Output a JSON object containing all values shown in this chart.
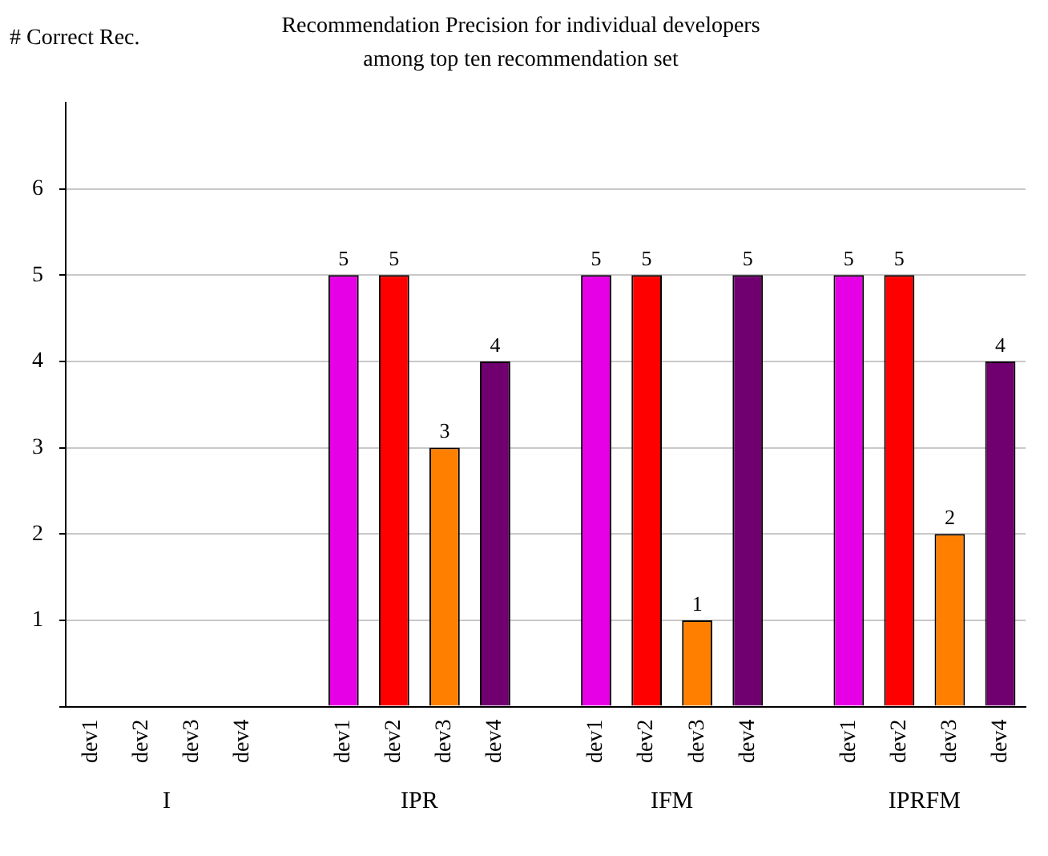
{
  "chart_data": {
    "type": "bar",
    "title": "Recommendation Precision for individual developers\namong top ten recommendation set",
    "ylabel": "# Correct Rec.",
    "categories": [
      "dev1",
      "dev2",
      "dev3",
      "dev4",
      null,
      "dev1",
      "dev2",
      "dev3",
      "dev4",
      null,
      "dev1",
      "dev2",
      "dev3",
      "dev4",
      null,
      "dev1",
      "dev2",
      "dev3",
      "dev4"
    ],
    "values": [
      0,
      0,
      0,
      0,
      null,
      5,
      5,
      3,
      4,
      null,
      5,
      5,
      1,
      5,
      null,
      5,
      5,
      2,
      4
    ],
    "value_labels": [
      null,
      null,
      null,
      null,
      null,
      "5",
      "5",
      "3",
      "4",
      null,
      "5",
      "5",
      "1",
      "5",
      null,
      "5",
      "5",
      "2",
      "4"
    ],
    "colors": [
      "#e600e6",
      "#ff0000",
      "#ff8000",
      "#700070",
      null,
      "#e600e6",
      "#ff0000",
      "#ff8000",
      "#700070",
      null,
      "#e600e6",
      "#ff0000",
      "#ff8000",
      "#700070",
      null,
      "#e600e6",
      "#ff0000",
      "#ff8000",
      "#700070"
    ],
    "annotations": [
      "I",
      "IPR",
      "IFM",
      "IPRFM"
    ],
    "ylim": [
      0,
      7
    ],
    "yticks": [
      {
        "value": 0,
        "label": null
      },
      1,
      2,
      3,
      4,
      5,
      6
    ],
    "grid": "y",
    "legend": false
  }
}
